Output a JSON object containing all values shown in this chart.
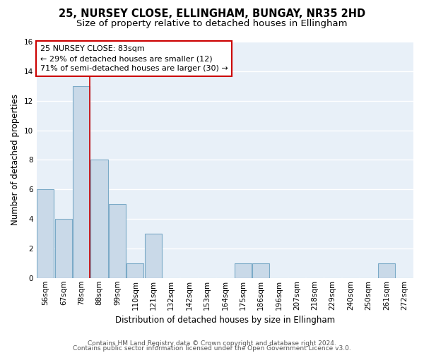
{
  "title1": "25, NURSEY CLOSE, ELLINGHAM, BUNGAY, NR35 2HD",
  "title2": "Size of property relative to detached houses in Ellingham",
  "xlabel": "Distribution of detached houses by size in Ellingham",
  "ylabel": "Number of detached properties",
  "bar_labels": [
    "56sqm",
    "67sqm",
    "78sqm",
    "88sqm",
    "99sqm",
    "110sqm",
    "121sqm",
    "132sqm",
    "142sqm",
    "153sqm",
    "164sqm",
    "175sqm",
    "186sqm",
    "196sqm",
    "207sqm",
    "218sqm",
    "229sqm",
    "240sqm",
    "250sqm",
    "261sqm",
    "272sqm"
  ],
  "bar_values": [
    6,
    4,
    13,
    8,
    5,
    1,
    3,
    0,
    0,
    0,
    0,
    1,
    1,
    0,
    0,
    0,
    0,
    0,
    0,
    1,
    0
  ],
  "bar_color": "#c9d9e8",
  "bar_edge_color": "#7baac7",
  "background_color": "#e8f0f8",
  "grid_color": "#ffffff",
  "fig_background": "#ffffff",
  "red_line_x": 2.45,
  "annotation_text": "25 NURSEY CLOSE: 83sqm\n← 29% of detached houses are smaller (12)\n71% of semi-detached houses are larger (30) →",
  "annotation_box_color": "#ffffff",
  "annotation_box_edge": "#cc0000",
  "annotation_text_color": "#000000",
  "red_line_color": "#cc0000",
  "ylim": [
    0,
    16
  ],
  "yticks": [
    0,
    2,
    4,
    6,
    8,
    10,
    12,
    14,
    16
  ],
  "footer1": "Contains HM Land Registry data © Crown copyright and database right 2024.",
  "footer2": "Contains public sector information licensed under the Open Government Licence v3.0.",
  "title1_fontsize": 10.5,
  "title2_fontsize": 9.5,
  "xlabel_fontsize": 8.5,
  "ylabel_fontsize": 8.5,
  "tick_fontsize": 7.5,
  "annotation_fontsize": 8,
  "footer_fontsize": 6.5
}
